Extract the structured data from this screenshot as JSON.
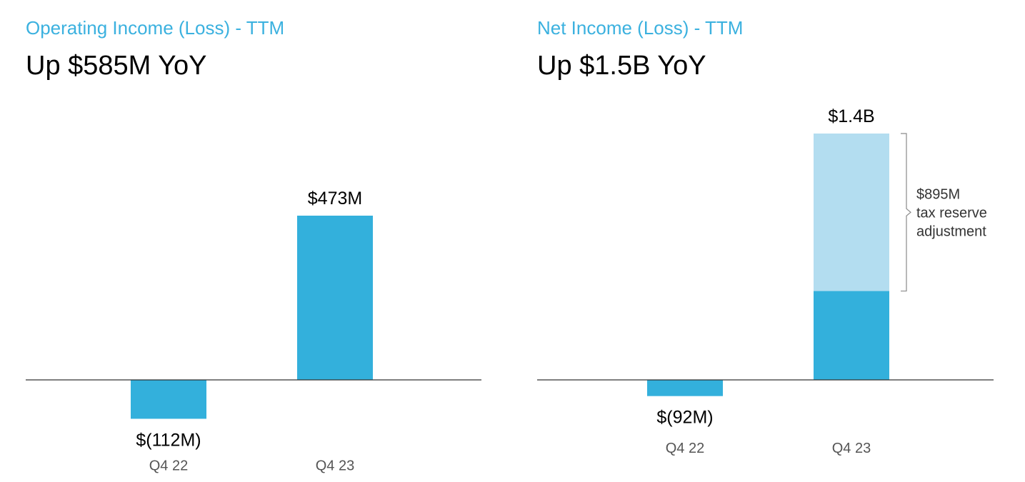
{
  "colors": {
    "accent": "#3BB1DF",
    "bar": "#33B0DC",
    "bar_light": "#B3DDF0",
    "axis": "#333333"
  },
  "chart_data": [
    {
      "type": "bar",
      "subtitle": "Operating Income (Loss) - TTM",
      "title": "Up $585M YoY",
      "categories": [
        "Q4 22",
        "Q4 23"
      ],
      "values": [
        -112,
        473
      ],
      "value_labels": [
        "$(112M)",
        "$473M"
      ],
      "unit": "$M",
      "ylim": [
        -140,
        560
      ],
      "grid": false,
      "legend": "none"
    },
    {
      "type": "bar",
      "subtitle": "Net Income (Loss) - TTM",
      "title": "Up $1.5B YoY",
      "categories": [
        "Q4 22",
        "Q4 23"
      ],
      "values": [
        -92,
        1400
      ],
      "value_labels": [
        "$(92M)",
        "$1.4B"
      ],
      "segments": [
        {
          "values": [
            -92,
            505
          ],
          "color": "bar"
        },
        {
          "values": [
            0,
            895
          ],
          "color": "bar_light"
        }
      ],
      "annotation": {
        "category": "Q4 23",
        "segment": 1,
        "lines": [
          "$895M",
          "tax reserve",
          "adjustment"
        ]
      },
      "unit": "$M",
      "ylim": [
        -140,
        1600
      ],
      "grid": false,
      "legend": "none"
    }
  ]
}
